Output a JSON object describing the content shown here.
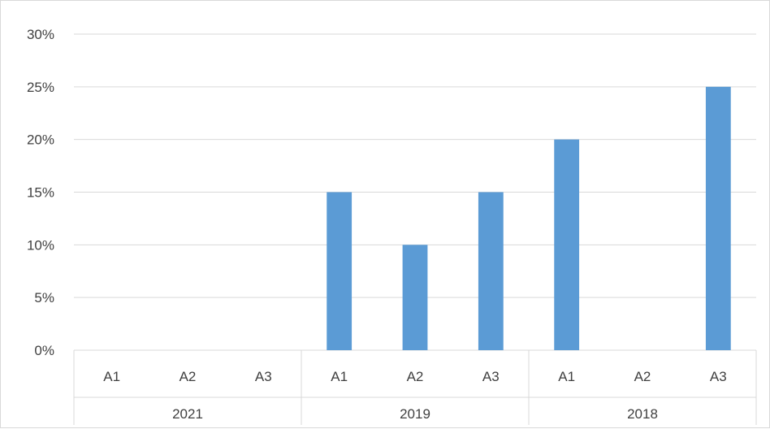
{
  "chart_data": {
    "type": "bar",
    "groups": [
      {
        "label": "2021",
        "categories": [
          "A1",
          "A2",
          "A3"
        ],
        "values": [
          0,
          0,
          0
        ]
      },
      {
        "label": "2019",
        "categories": [
          "A1",
          "A2",
          "A3"
        ],
        "values": [
          15,
          10,
          15
        ]
      },
      {
        "label": "2018",
        "categories": [
          "A1",
          "A2",
          "A3"
        ],
        "values": [
          20,
          0,
          25
        ]
      }
    ],
    "y_ticks": [
      "0%",
      "5%",
      "10%",
      "15%",
      "20%",
      "25%",
      "30%"
    ],
    "ylim": [
      0,
      30
    ],
    "y_unit": "%",
    "grid": true,
    "legend": "none",
    "title": "",
    "xlabel": "",
    "ylabel": "",
    "bar_color": "#5b9bd5",
    "grid_color": "#d9d9d9",
    "text_color": "#404040"
  }
}
